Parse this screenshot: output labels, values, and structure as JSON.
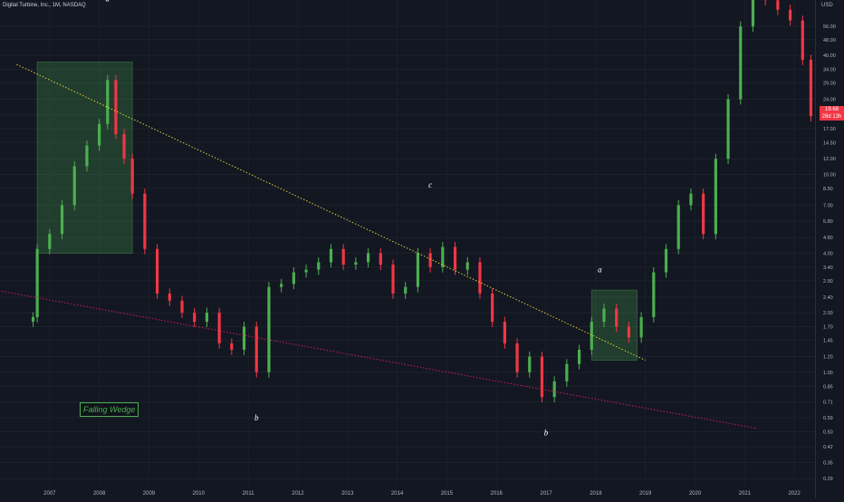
{
  "header": {
    "symbol_title": "Digital Turbine, Inc., 1M, NASDAQ",
    "currency": "USD"
  },
  "price_tag": {
    "price": "19.68",
    "countdown": "28d 13h"
  },
  "annotations": {
    "pattern_label": "Falling Wedge",
    "wave_labels": [
      {
        "text": "a",
        "date": "2008-03",
        "price": 75
      },
      {
        "text": "b",
        "date": "2011-03",
        "price": 0.57
      },
      {
        "text": "c",
        "date": "2014-09",
        "price": 8.6
      },
      {
        "text": "a",
        "date": "2018-02",
        "price": 3.2
      },
      {
        "text": "b",
        "date": "2017-01",
        "price": 0.48
      }
    ]
  },
  "colors": {
    "background": "#131722",
    "up_candle": "#26a69a",
    "up_candle_bright": "#4caf50",
    "down_candle": "#f23645",
    "upper_trendline": "#ffeb3b",
    "lower_trendline": "#e91e63",
    "box_fill": "#4caf50",
    "axis_text": "#b2b5be"
  },
  "chart_data": {
    "type": "candlestick",
    "title": "Digital Turbine, Inc., 1M, NASDAQ",
    "y_scale": "log",
    "ylim": [
      0.27,
      70
    ],
    "xlim": [
      "2006-01",
      "2022-06"
    ],
    "x_tick_labels": [
      "2007",
      "2008",
      "2009",
      "2010",
      "2011",
      "2012",
      "2013",
      "2014",
      "2015",
      "2016",
      "2017",
      "2018",
      "2019",
      "2020",
      "2021",
      "2022"
    ],
    "y_tick_labels": [
      "56.00",
      "48.00",
      "40.00",
      "34.00",
      "29.00",
      "24.00",
      "20.00",
      "17.00",
      "14.50",
      "12.00",
      "10.00",
      "8.50",
      "7.00",
      "5.80",
      "4.80",
      "4.00",
      "3.40",
      "2.90",
      "2.40",
      "2.00",
      "1.70",
      "1.45",
      "1.20",
      "1.00",
      "0.85",
      "0.71",
      "0.59",
      "0.50",
      "0.42",
      "0.35",
      "0.29"
    ],
    "series": [
      {
        "values": [
          {
            "date": "2006-09",
            "price": 1.9
          },
          {
            "date": "2006-10",
            "price": 4.2
          },
          {
            "date": "2007-01",
            "price": 5.0
          },
          {
            "date": "2007-04",
            "price": 7.0
          },
          {
            "date": "2007-07",
            "price": 11.0
          },
          {
            "date": "2007-10",
            "price": 14.0
          },
          {
            "date": "2008-01",
            "price": 18.0
          },
          {
            "date": "2008-03",
            "price": 30.0
          },
          {
            "date": "2008-05",
            "price": 16.0
          },
          {
            "date": "2008-07",
            "price": 12.0
          },
          {
            "date": "2008-09",
            "price": 8.0
          },
          {
            "date": "2008-12",
            "price": 4.2
          },
          {
            "date": "2009-03",
            "price": 2.5
          },
          {
            "date": "2009-06",
            "price": 2.3
          },
          {
            "date": "2009-09",
            "price": 2.0
          },
          {
            "date": "2009-12",
            "price": 1.8
          },
          {
            "date": "2010-03",
            "price": 2.0
          },
          {
            "date": "2010-06",
            "price": 1.4
          },
          {
            "date": "2010-09",
            "price": 1.3
          },
          {
            "date": "2010-12",
            "price": 1.7
          },
          {
            "date": "2011-03",
            "price": 1.0
          },
          {
            "date": "2011-06",
            "price": 2.7
          },
          {
            "date": "2011-09",
            "price": 2.8
          },
          {
            "date": "2011-12",
            "price": 3.2
          },
          {
            "date": "2012-03",
            "price": 3.3
          },
          {
            "date": "2012-06",
            "price": 3.6
          },
          {
            "date": "2012-09",
            "price": 4.2
          },
          {
            "date": "2012-12",
            "price": 3.5
          },
          {
            "date": "2013-03",
            "price": 3.6
          },
          {
            "date": "2013-06",
            "price": 4.0
          },
          {
            "date": "2013-09",
            "price": 3.5
          },
          {
            "date": "2013-12",
            "price": 2.5
          },
          {
            "date": "2014-03",
            "price": 2.7
          },
          {
            "date": "2014-06",
            "price": 4.0
          },
          {
            "date": "2014-09",
            "price": 3.4
          },
          {
            "date": "2014-12",
            "price": 4.3
          },
          {
            "date": "2015-03",
            "price": 3.3
          },
          {
            "date": "2015-06",
            "price": 3.6
          },
          {
            "date": "2015-09",
            "price": 2.5
          },
          {
            "date": "2015-12",
            "price": 1.8
          },
          {
            "date": "2016-03",
            "price": 1.4
          },
          {
            "date": "2016-06",
            "price": 1.0
          },
          {
            "date": "2016-09",
            "price": 1.2
          },
          {
            "date": "2016-12",
            "price": 0.75
          },
          {
            "date": "2017-03",
            "price": 0.9
          },
          {
            "date": "2017-06",
            "price": 1.1
          },
          {
            "date": "2017-09",
            "price": 1.3
          },
          {
            "date": "2017-12",
            "price": 1.8
          },
          {
            "date": "2018-03",
            "price": 2.1
          },
          {
            "date": "2018-06",
            "price": 1.7
          },
          {
            "date": "2018-09",
            "price": 1.5
          },
          {
            "date": "2018-12",
            "price": 1.9
          },
          {
            "date": "2019-03",
            "price": 3.2
          },
          {
            "date": "2019-06",
            "price": 4.2
          },
          {
            "date": "2019-09",
            "price": 7.0
          },
          {
            "date": "2019-12",
            "price": 8.0
          },
          {
            "date": "2020-03",
            "price": 5.0
          },
          {
            "date": "2020-06",
            "price": 12.0
          },
          {
            "date": "2020-09",
            "price": 24.0
          },
          {
            "date": "2020-12",
            "price": 56.0
          },
          {
            "date": "2021-03",
            "price": 80.0
          },
          {
            "date": "2021-06",
            "price": 76.0
          },
          {
            "date": "2021-09",
            "price": 68.0
          },
          {
            "date": "2021-12",
            "price": 60.0
          },
          {
            "date": "2022-03",
            "price": 38.0
          },
          {
            "date": "2022-05",
            "price": 19.68
          }
        ]
      }
    ],
    "trendlines": [
      {
        "name": "upper",
        "from": {
          "date": "2006-05",
          "price": 36
        },
        "to": {
          "date": "2019-01",
          "price": 1.15
        }
      },
      {
        "name": "lower",
        "from": {
          "date": "2005-12",
          "price": 2.6
        },
        "to": {
          "date": "2021-04",
          "price": 0.52
        }
      }
    ],
    "boxes": [
      {
        "from": {
          "date": "2006-10",
          "price": 37
        },
        "to": {
          "date": "2008-09",
          "price": 4.0
        }
      },
      {
        "from": {
          "date": "2017-12",
          "price": 2.6
        },
        "to": {
          "date": "2018-11",
          "price": 1.15
        }
      }
    ]
  }
}
